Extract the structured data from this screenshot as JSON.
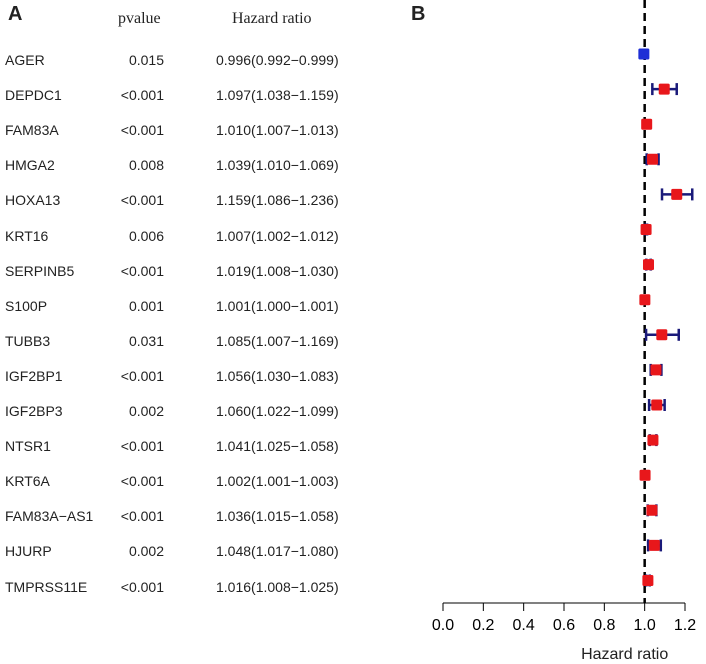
{
  "panel_a_label": "A",
  "panel_b_label": "B",
  "headers": {
    "pvalue": "pvalue",
    "hazard_ratio": "Hazard ratio"
  },
  "chart_data": {
    "type": "forest",
    "xlabel": "Hazard ratio",
    "xlim": [
      0.0,
      1.2
    ],
    "xticks": [
      "0.0",
      "0.2",
      "0.4",
      "0.6",
      "0.8",
      "1.0",
      "1.2"
    ],
    "reference_line": 1.0,
    "colors": {
      "protective": "#1f2fd6",
      "risk": "#e8171b",
      "ci": "#1a1a7a"
    },
    "rows": [
      {
        "gene": "AGER",
        "pvalue": "0.015",
        "hr_text": "0.996(0.992−0.999)",
        "hr": 0.996,
        "lower": 0.992,
        "upper": 0.999
      },
      {
        "gene": "DEPDC1",
        "pvalue": "<0.001",
        "hr_text": "1.097(1.038−1.159)",
        "hr": 1.097,
        "lower": 1.038,
        "upper": 1.159
      },
      {
        "gene": "FAM83A",
        "pvalue": "<0.001",
        "hr_text": "1.010(1.007−1.013)",
        "hr": 1.01,
        "lower": 1.007,
        "upper": 1.013
      },
      {
        "gene": "HMGA2",
        "pvalue": "0.008",
        "hr_text": "1.039(1.010−1.069)",
        "hr": 1.039,
        "lower": 1.01,
        "upper": 1.069
      },
      {
        "gene": "HOXA13",
        "pvalue": "<0.001",
        "hr_text": "1.159(1.086−1.236)",
        "hr": 1.159,
        "lower": 1.086,
        "upper": 1.236
      },
      {
        "gene": "KRT16",
        "pvalue": "0.006",
        "hr_text": "1.007(1.002−1.012)",
        "hr": 1.007,
        "lower": 1.002,
        "upper": 1.012
      },
      {
        "gene": "SERPINB5",
        "pvalue": "<0.001",
        "hr_text": "1.019(1.008−1.030)",
        "hr": 1.019,
        "lower": 1.008,
        "upper": 1.03
      },
      {
        "gene": "S100P",
        "pvalue": "0.001",
        "hr_text": "1.001(1.000−1.001)",
        "hr": 1.001,
        "lower": 1.0,
        "upper": 1.001
      },
      {
        "gene": "TUBB3",
        "pvalue": "0.031",
        "hr_text": "1.085(1.007−1.169)",
        "hr": 1.085,
        "lower": 1.007,
        "upper": 1.169
      },
      {
        "gene": "IGF2BP1",
        "pvalue": "<0.001",
        "hr_text": "1.056(1.030−1.083)",
        "hr": 1.056,
        "lower": 1.03,
        "upper": 1.083
      },
      {
        "gene": "IGF2BP3",
        "pvalue": "0.002",
        "hr_text": "1.060(1.022−1.099)",
        "hr": 1.06,
        "lower": 1.022,
        "upper": 1.099
      },
      {
        "gene": "NTSR1",
        "pvalue": "<0.001",
        "hr_text": "1.041(1.025−1.058)",
        "hr": 1.041,
        "lower": 1.025,
        "upper": 1.058
      },
      {
        "gene": "KRT6A",
        "pvalue": "<0.001",
        "hr_text": "1.002(1.001−1.003)",
        "hr": 1.002,
        "lower": 1.001,
        "upper": 1.003
      },
      {
        "gene": "FAM83A−AS1",
        "pvalue": "<0.001",
        "hr_text": "1.036(1.015−1.058)",
        "hr": 1.036,
        "lower": 1.015,
        "upper": 1.058
      },
      {
        "gene": "HJURP",
        "pvalue": "0.002",
        "hr_text": "1.048(1.017−1.080)",
        "hr": 1.048,
        "lower": 1.017,
        "upper": 1.08
      },
      {
        "gene": "TMPRSS11E",
        "pvalue": "<0.001",
        "hr_text": "1.016(1.008−1.025)",
        "hr": 1.016,
        "lower": 1.008,
        "upper": 1.025
      }
    ]
  }
}
